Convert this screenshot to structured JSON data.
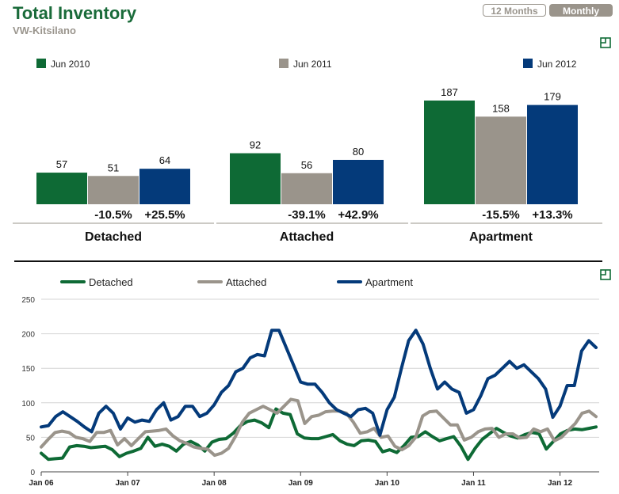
{
  "header": {
    "title": "Total Inventory",
    "subtitle": "VW-Kitsilano",
    "toggle_12_months": "12 Months",
    "toggle_monthly": "Monthly"
  },
  "colors": {
    "green": "#0e6a35",
    "gray": "#9a948b",
    "blue": "#043a7a",
    "title_green": "#1a6b3a",
    "subtitle_gray": "#9a958d"
  },
  "icons": [
    "expand-icon",
    "expand-icon"
  ],
  "chart_data": [
    {
      "type": "bar",
      "legend": [
        "Jun 2010",
        "Jun 2011",
        "Jun 2012"
      ],
      "categories": [
        "Detached",
        "Attached",
        "Apartment"
      ],
      "series": [
        {
          "name": "Jun 2010",
          "values": [
            57,
            92,
            187
          ]
        },
        {
          "name": "Jun 2011",
          "values": [
            51,
            56,
            158
          ]
        },
        {
          "name": "Jun 2012",
          "values": [
            64,
            80,
            179
          ]
        }
      ],
      "changes": [
        [
          "-10.5%",
          "+25.5%"
        ],
        [
          "-39.1%",
          "+42.9%"
        ],
        [
          "-15.5%",
          "+13.3%"
        ]
      ],
      "legend_position": "top"
    },
    {
      "type": "line",
      "legend": [
        "Detached",
        "Attached",
        "Apartment"
      ],
      "x_tick_labels": [
        "Jan 06",
        "Jan 07",
        "Jan 08",
        "Jan 09",
        "Jan 10",
        "Jan 11",
        "Jan 12"
      ],
      "x_start": "Jan 06",
      "x_end": "Jun 12",
      "ylim": [
        0,
        250
      ],
      "y_ticks": [
        0,
        50,
        100,
        150,
        200,
        250
      ],
      "grid": true,
      "series": [
        {
          "name": "Detached",
          "values": [
            27,
            18,
            19,
            20,
            36,
            38,
            37,
            35,
            36,
            37,
            32,
            22,
            27,
            30,
            34,
            50,
            37,
            40,
            37,
            30,
            40,
            44,
            39,
            30,
            43,
            47,
            48,
            56,
            67,
            73,
            75,
            71,
            64,
            91,
            85,
            83,
            55,
            49,
            48,
            48,
            51,
            54,
            45,
            40,
            38,
            45,
            46,
            44,
            29,
            32,
            28,
            38,
            50,
            51,
            58,
            51,
            45,
            48,
            51,
            37,
            18,
            34,
            47,
            55,
            63,
            57,
            52,
            49,
            54,
            57,
            55,
            33,
            44,
            55,
            60,
            62,
            61,
            63,
            65
          ]
        },
        {
          "name": "Attached",
          "values": [
            36,
            47,
            57,
            59,
            57,
            50,
            48,
            44,
            57,
            57,
            60,
            39,
            48,
            38,
            48,
            58,
            59,
            60,
            62,
            52,
            45,
            41,
            36,
            34,
            33,
            24,
            27,
            34,
            51,
            72,
            85,
            90,
            95,
            90,
            85,
            95,
            105,
            103,
            70,
            80,
            82,
            87,
            88,
            88,
            85,
            72,
            56,
            58,
            63,
            50,
            52,
            37,
            32,
            38,
            50,
            81,
            87,
            88,
            78,
            68,
            68,
            46,
            50,
            58,
            62,
            63,
            50,
            55,
            55,
            49,
            50,
            62,
            58,
            62,
            45,
            50,
            60,
            70,
            85,
            88,
            80
          ]
        },
        {
          "name": "Apartment",
          "values": [
            65,
            67,
            80,
            87,
            80,
            73,
            65,
            58,
            85,
            95,
            85,
            62,
            78,
            72,
            75,
            73,
            90,
            100,
            75,
            80,
            95,
            95,
            80,
            85,
            97,
            115,
            125,
            145,
            150,
            165,
            170,
            168,
            205,
            205,
            180,
            155,
            130,
            127,
            127,
            115,
            100,
            90,
            85,
            80,
            90,
            92,
            85,
            53,
            90,
            108,
            150,
            190,
            205,
            185,
            150,
            120,
            130,
            120,
            115,
            85,
            90,
            110,
            135,
            140,
            150,
            160,
            150,
            155,
            145,
            135,
            120,
            79,
            95,
            125,
            125,
            175,
            190,
            180
          ]
        }
      ]
    }
  ]
}
